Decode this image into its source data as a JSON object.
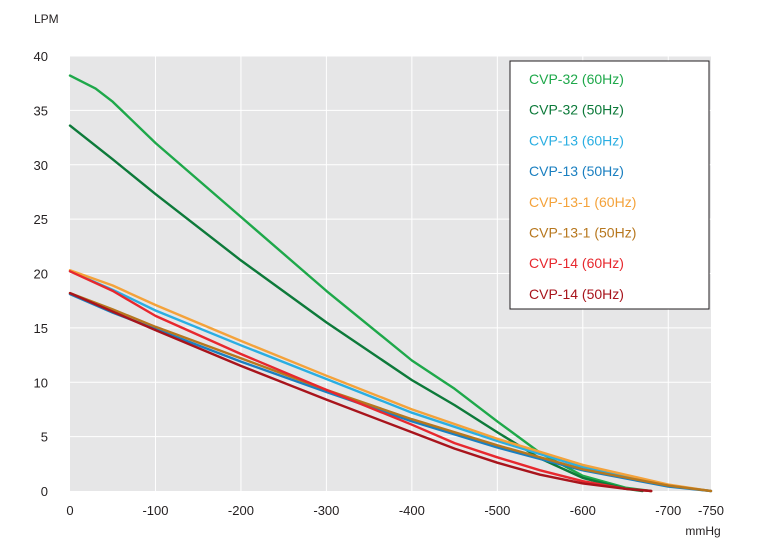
{
  "chart_data": {
    "type": "line",
    "title": "",
    "ylabel": "LPM",
    "xlabel": "mmHg",
    "xlim": [
      0,
      -750
    ],
    "ylim": [
      0,
      40
    ],
    "grid": true,
    "legend_position": "top-right",
    "x_ticks": [
      {
        "value": 0,
        "label": "0"
      },
      {
        "value": -100,
        "label": "-100"
      },
      {
        "value": -200,
        "label": "-200"
      },
      {
        "value": -300,
        "label": "-300"
      },
      {
        "value": -400,
        "label": "-400"
      },
      {
        "value": -500,
        "label": "-500"
      },
      {
        "value": -600,
        "label": "-600"
      },
      {
        "value": -700,
        "label": "-700"
      },
      {
        "value": -750,
        "label": "-750"
      }
    ],
    "y_ticks": [
      {
        "value": 0,
        "label": "0"
      },
      {
        "value": 5,
        "label": "5"
      },
      {
        "value": 10,
        "label": "10"
      },
      {
        "value": 15,
        "label": "15"
      },
      {
        "value": 20,
        "label": "20"
      },
      {
        "value": 25,
        "label": "25"
      },
      {
        "value": 30,
        "label": "30"
      },
      {
        "value": 35,
        "label": "35"
      },
      {
        "value": 40,
        "label": "40"
      }
    ],
    "series": [
      {
        "name": "CVP-32 (60Hz)",
        "color": "#1ea84a",
        "points": [
          [
            0,
            38.2
          ],
          [
            -30,
            37
          ],
          [
            -50,
            35.8
          ],
          [
            -100,
            32
          ],
          [
            -200,
            25.2
          ],
          [
            -300,
            18.4
          ],
          [
            -400,
            12
          ],
          [
            -450,
            9.4
          ],
          [
            -500,
            6.4
          ],
          [
            -550,
            3.5
          ],
          [
            -600,
            1.4
          ],
          [
            -650,
            0.3
          ],
          [
            -680,
            0
          ]
        ]
      },
      {
        "name": "CVP-32 (50Hz)",
        "color": "#0d7a3a",
        "points": [
          [
            0,
            33.6
          ],
          [
            -50,
            30.5
          ],
          [
            -100,
            27.3
          ],
          [
            -200,
            21.2
          ],
          [
            -300,
            15.5
          ],
          [
            -400,
            10.2
          ],
          [
            -450,
            7.9
          ],
          [
            -500,
            5.4
          ],
          [
            -550,
            3
          ],
          [
            -600,
            1.2
          ],
          [
            -650,
            0.2
          ],
          [
            -670,
            0
          ]
        ]
      },
      {
        "name": "CVP-13 (60Hz)",
        "color": "#2aaee2",
        "points": [
          [
            0,
            20.2
          ],
          [
            -50,
            18.5
          ],
          [
            -100,
            16.6
          ],
          [
            -200,
            13.4
          ],
          [
            -300,
            10.3
          ],
          [
            -400,
            7.2
          ],
          [
            -500,
            4.6
          ],
          [
            -600,
            2.2
          ],
          [
            -700,
            0.5
          ],
          [
            -750,
            0
          ]
        ]
      },
      {
        "name": "CVP-13 (50Hz)",
        "color": "#1a7fc0",
        "points": [
          [
            0,
            18.1
          ],
          [
            -50,
            16.4
          ],
          [
            -100,
            14.9
          ],
          [
            -200,
            11.9
          ],
          [
            -300,
            9.1
          ],
          [
            -400,
            6.4
          ],
          [
            -500,
            4
          ],
          [
            -600,
            1.9
          ],
          [
            -700,
            0.4
          ],
          [
            -750,
            0
          ]
        ]
      },
      {
        "name": "CVP-13-1 (60Hz)",
        "color": "#f4a23a",
        "points": [
          [
            0,
            20.3
          ],
          [
            -50,
            18.9
          ],
          [
            -100,
            17.1
          ],
          [
            -200,
            13.8
          ],
          [
            -300,
            10.6
          ],
          [
            -400,
            7.5
          ],
          [
            -500,
            4.8
          ],
          [
            -600,
            2.4
          ],
          [
            -700,
            0.6
          ],
          [
            -750,
            0
          ]
        ]
      },
      {
        "name": "CVP-13-1 (50Hz)",
        "color": "#b7771e",
        "points": [
          [
            0,
            18.2
          ],
          [
            -50,
            16.7
          ],
          [
            -100,
            15.1
          ],
          [
            -200,
            12.2
          ],
          [
            -300,
            9.3
          ],
          [
            -400,
            6.6
          ],
          [
            -500,
            4.2
          ],
          [
            -600,
            2
          ],
          [
            -700,
            0.5
          ],
          [
            -750,
            0
          ]
        ]
      },
      {
        "name": "CVP-14 (60Hz)",
        "color": "#e7282e",
        "points": [
          [
            0,
            20.2
          ],
          [
            -50,
            18.4
          ],
          [
            -100,
            16.1
          ],
          [
            -200,
            12.6
          ],
          [
            -300,
            9.3
          ],
          [
            -400,
            6.1
          ],
          [
            -450,
            4.4
          ],
          [
            -500,
            3.1
          ],
          [
            -550,
            1.9
          ],
          [
            -600,
            0.9
          ],
          [
            -650,
            0.2
          ],
          [
            -680,
            0
          ]
        ]
      },
      {
        "name": "CVP-14 (50Hz)",
        "color": "#a8141c",
        "points": [
          [
            0,
            18.2
          ],
          [
            -50,
            16.5
          ],
          [
            -100,
            14.8
          ],
          [
            -200,
            11.5
          ],
          [
            -300,
            8.4
          ],
          [
            -400,
            5.4
          ],
          [
            -450,
            3.9
          ],
          [
            -500,
            2.6
          ],
          [
            -550,
            1.5
          ],
          [
            -600,
            0.7
          ],
          [
            -650,
            0.2
          ],
          [
            -680,
            0
          ]
        ]
      }
    ]
  }
}
